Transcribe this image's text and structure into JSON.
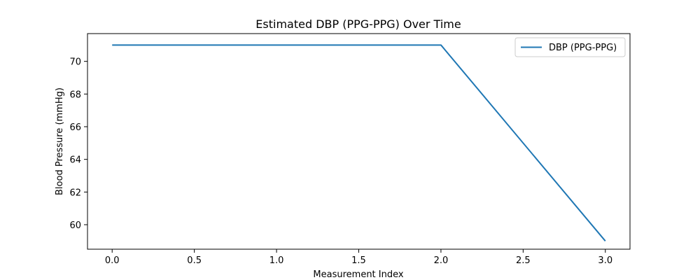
{
  "chart_data": {
    "type": "line",
    "title": "Estimated DBP (PPG-PPG) Over Time",
    "xlabel": "Measurement Index",
    "ylabel": "Blood Pressure (mmHg)",
    "xlim": [
      -0.15,
      3.15
    ],
    "ylim": [
      58.5,
      71.7
    ],
    "xticks": [
      0.0,
      0.5,
      1.0,
      1.5,
      2.0,
      2.5,
      3.0
    ],
    "xtick_labels": [
      "0.0",
      "0.5",
      "1.0",
      "1.5",
      "2.0",
      "2.5",
      "3.0"
    ],
    "yticks": [
      60,
      62,
      64,
      66,
      68,
      70
    ],
    "ytick_labels": [
      "60",
      "62",
      "64",
      "66",
      "68",
      "70"
    ],
    "grid": false,
    "legend_position": "top-right",
    "series": [
      {
        "name": "DBP (PPG-PPG)",
        "color": "#1f77b4",
        "x": [
          0,
          1,
          2,
          3
        ],
        "y": [
          71,
          71,
          71,
          59
        ]
      }
    ]
  }
}
